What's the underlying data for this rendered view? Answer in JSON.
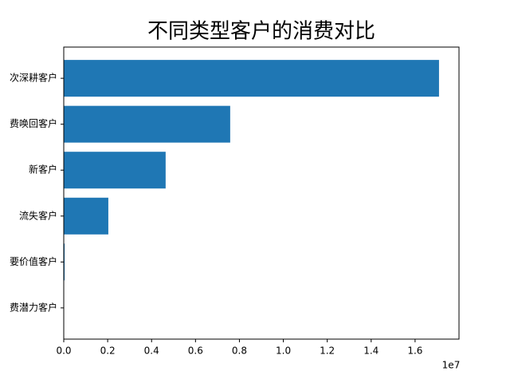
{
  "chart_data": {
    "type": "barh",
    "title": "不同类型客户的消费对比",
    "categories": [
      "次深耕客户",
      "费唤回客户",
      "新客户",
      "流失客户",
      "要价值客户",
      "费潜力客户"
    ],
    "values": [
      1.709,
      0.758,
      0.464,
      0.203,
      0.004,
      0.0005
    ],
    "color": "#1f77b4",
    "xlim": [
      0,
      1.8
    ],
    "xticks": [
      {
        "value": 0,
        "label": "0.0"
      },
      0.2,
      0.4,
      0.6,
      0.8,
      {
        "value": 1,
        "label": "1.0"
      },
      1.2,
      1.4,
      1.6
    ],
    "x_offset_label": "1e7"
  }
}
